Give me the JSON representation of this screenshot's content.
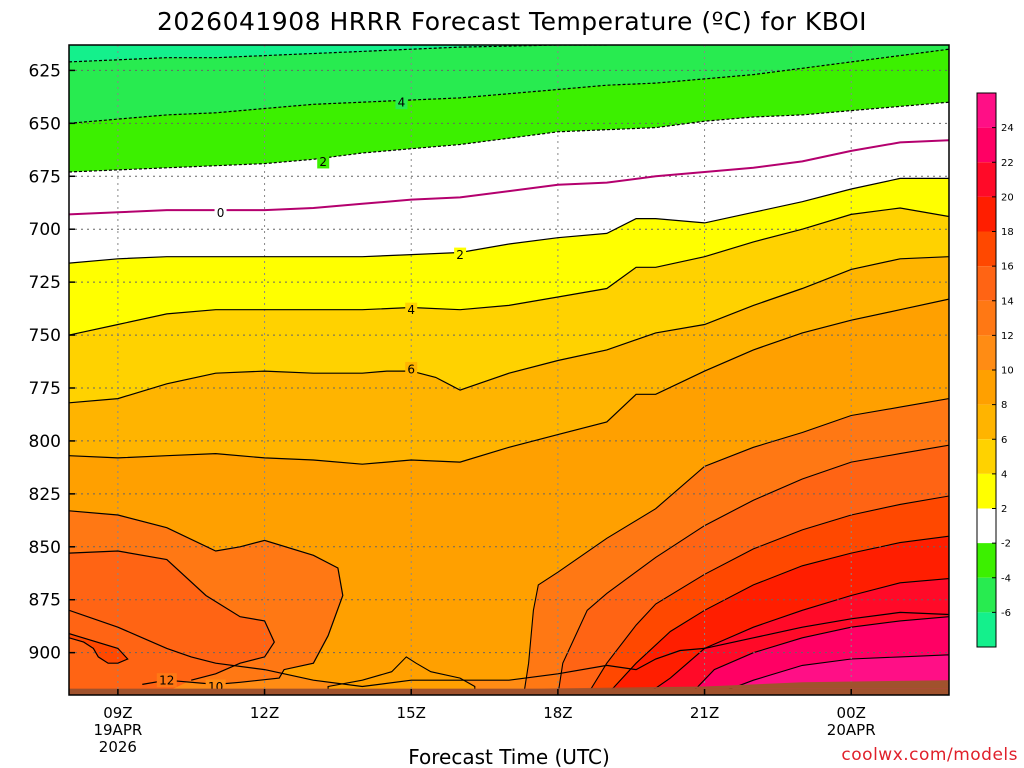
{
  "chart_data": {
    "type": "heatmap",
    "subtype": "filled contour (time-height cross section)",
    "title": "2026041908 HRRR Forecast Temperature (ºC) for KBOI",
    "xlabel": "Forecast Time (UTC)",
    "ylabel": "",
    "credit": "coolwx.com/models",
    "y_axis": {
      "unit_note": "pressure (mb), inverted (625 at top)",
      "ticks": [
        625,
        650,
        675,
        700,
        725,
        750,
        775,
        800,
        825,
        850,
        875,
        900
      ],
      "tick_labels": [
        "625",
        "650",
        "675",
        "700",
        "725",
        "750",
        "775",
        "800",
        "825",
        "850",
        "875",
        "900"
      ],
      "range": [
        613,
        920
      ]
    },
    "x_axis": {
      "unit_note": "forecast hour (0 = 08Z 19 Apr 2026)",
      "range": [
        0,
        18
      ],
      "ticks": [
        {
          "hour": 1,
          "label": "09Z",
          "sub1": "19APR",
          "sub2": "2026"
        },
        {
          "hour": 4,
          "label": "12Z",
          "sub1": "",
          "sub2": ""
        },
        {
          "hour": 7,
          "label": "15Z",
          "sub1": "",
          "sub2": ""
        },
        {
          "hour": 10,
          "label": "18Z",
          "sub1": "",
          "sub2": ""
        },
        {
          "hour": 13,
          "label": "21Z",
          "sub1": "",
          "sub2": ""
        },
        {
          "hour": 16,
          "label": "00Z",
          "sub1": "20APR",
          "sub2": ""
        }
      ]
    },
    "grid": true,
    "colorbar": {
      "position": "right",
      "tick_labels": [
        "24",
        "22",
        "20",
        "18",
        "16",
        "14",
        "12",
        "10",
        "8",
        "6",
        "4",
        "2",
        "-2",
        "-4",
        "-6"
      ],
      "bins": [
        {
          "min": 24,
          "max": 26,
          "color": "#ff0f86"
        },
        {
          "min": 22,
          "max": 24,
          "color": "#ff0064"
        },
        {
          "min": 20,
          "max": 22,
          "color": "#ff0a28"
        },
        {
          "min": 18,
          "max": 20,
          "color": "#ff1e00"
        },
        {
          "min": 16,
          "max": 18,
          "color": "#ff4800"
        },
        {
          "min": 14,
          "max": 16,
          "color": "#ff6414"
        },
        {
          "min": 12,
          "max": 14,
          "color": "#ff7814"
        },
        {
          "min": 10,
          "max": 12,
          "color": "#ff8c14"
        },
        {
          "min": 8,
          "max": 10,
          "color": "#ffa000"
        },
        {
          "min": 6,
          "max": 8,
          "color": "#ffb400"
        },
        {
          "min": 4,
          "max": 6,
          "color": "#ffd200"
        },
        {
          "min": 2,
          "max": 4,
          "color": "#ffff00"
        },
        {
          "min": -2,
          "max": 2,
          "color": "#ffffff"
        },
        {
          "min": -4,
          "max": -2,
          "color": "#3cf000"
        },
        {
          "min": -6,
          "max": -4,
          "color": "#28eb50"
        },
        {
          "min": -8,
          "max": -6,
          "color": "#14f08c"
        }
      ]
    },
    "ground_color": "#a0522d",
    "zero_isotherm_color": "#b4006e",
    "contours": [
      {
        "value": -6,
        "label_shown": false,
        "dashed": true,
        "points": [
          [
            0,
            621
          ],
          [
            1,
            620
          ],
          [
            2,
            619
          ],
          [
            3,
            619
          ],
          [
            4,
            618
          ],
          [
            5,
            617
          ],
          [
            6,
            616
          ],
          [
            7,
            615
          ],
          [
            8,
            614
          ],
          [
            9,
            613.5
          ],
          [
            10,
            613
          ],
          [
            11,
            613
          ]
        ]
      },
      {
        "value": -4,
        "label_shown": true,
        "label_at": [
          6.8,
          640
        ],
        "dashed": true,
        "points": [
          [
            0,
            650
          ],
          [
            1,
            648
          ],
          [
            2,
            646
          ],
          [
            3,
            645
          ],
          [
            4,
            643
          ],
          [
            5,
            641
          ],
          [
            6,
            640
          ],
          [
            7,
            639
          ],
          [
            8,
            638
          ],
          [
            9,
            636
          ],
          [
            10,
            634
          ],
          [
            11,
            632
          ],
          [
            12,
            631
          ],
          [
            13,
            629
          ],
          [
            14,
            627
          ],
          [
            15,
            624
          ],
          [
            16,
            621
          ],
          [
            17,
            618
          ],
          [
            18,
            615
          ]
        ]
      },
      {
        "value": -2,
        "label_shown": true,
        "label_at": [
          5.2,
          668
        ],
        "dashed": true,
        "points": [
          [
            0,
            673
          ],
          [
            1,
            672
          ],
          [
            2,
            671
          ],
          [
            3,
            670
          ],
          [
            4,
            669
          ],
          [
            5,
            667
          ],
          [
            6,
            664
          ],
          [
            7,
            662
          ],
          [
            8,
            660
          ],
          [
            9,
            657
          ],
          [
            10,
            654
          ],
          [
            11,
            653
          ],
          [
            12,
            652
          ],
          [
            13,
            649
          ],
          [
            14,
            647
          ],
          [
            15,
            646
          ],
          [
            16,
            644
          ],
          [
            17,
            642
          ],
          [
            18,
            640
          ]
        ]
      },
      {
        "value": 0,
        "label_shown": true,
        "label_at": [
          3.1,
          692
        ],
        "dashed": false,
        "points": [
          [
            0,
            693
          ],
          [
            1,
            692
          ],
          [
            2,
            691
          ],
          [
            3,
            691
          ],
          [
            4,
            691
          ],
          [
            5,
            690
          ],
          [
            6,
            688
          ],
          [
            7,
            686
          ],
          [
            8,
            685
          ],
          [
            9,
            682
          ],
          [
            10,
            679
          ],
          [
            11,
            678
          ],
          [
            12,
            675
          ],
          [
            13,
            673
          ],
          [
            14,
            671
          ],
          [
            15,
            668
          ],
          [
            16,
            663
          ],
          [
            17,
            659
          ],
          [
            18,
            658
          ]
        ]
      },
      {
        "value": 2,
        "label_shown": true,
        "label_at": [
          8,
          712
        ],
        "dashed": false,
        "points": [
          [
            0,
            716
          ],
          [
            1,
            714
          ],
          [
            2,
            713
          ],
          [
            3,
            713
          ],
          [
            4,
            713
          ],
          [
            5,
            713
          ],
          [
            6,
            713
          ],
          [
            7,
            712
          ],
          [
            8,
            711
          ],
          [
            9,
            707
          ],
          [
            10,
            704
          ],
          [
            11,
            702
          ],
          [
            11.6,
            695
          ],
          [
            12,
            695
          ],
          [
            13,
            697
          ],
          [
            14,
            692
          ],
          [
            15,
            687
          ],
          [
            16,
            681
          ],
          [
            17,
            676
          ],
          [
            18,
            676
          ]
        ]
      },
      {
        "value": 4,
        "label_shown": true,
        "label_at": [
          7,
          738
        ],
        "dashed": false,
        "points": [
          [
            0,
            750
          ],
          [
            1,
            745
          ],
          [
            2,
            740
          ],
          [
            3,
            738
          ],
          [
            4,
            738
          ],
          [
            5,
            738
          ],
          [
            6,
            738
          ],
          [
            7,
            737
          ],
          [
            8,
            738
          ],
          [
            9,
            736
          ],
          [
            10,
            732
          ],
          [
            11,
            728
          ],
          [
            11.6,
            718
          ],
          [
            12,
            718
          ],
          [
            13,
            713
          ],
          [
            14,
            706
          ],
          [
            15,
            700
          ],
          [
            16,
            693
          ],
          [
            17,
            690
          ],
          [
            18,
            694
          ]
        ]
      },
      {
        "value": 6,
        "label_shown": true,
        "label_at": [
          7,
          766
        ],
        "dashed": false,
        "points": [
          [
            0,
            782
          ],
          [
            1,
            780
          ],
          [
            2,
            773
          ],
          [
            3,
            768
          ],
          [
            4,
            767
          ],
          [
            5,
            768
          ],
          [
            6,
            768
          ],
          [
            6.5,
            767
          ],
          [
            7,
            767
          ],
          [
            7.5,
            770
          ],
          [
            8,
            776
          ],
          [
            9,
            768
          ],
          [
            10,
            762
          ],
          [
            11,
            757
          ],
          [
            12,
            749
          ],
          [
            13,
            745
          ],
          [
            14,
            736
          ],
          [
            15,
            728
          ],
          [
            16,
            719
          ],
          [
            17,
            714
          ],
          [
            18,
            713
          ]
        ]
      },
      {
        "value": 8,
        "label_shown": false,
        "dashed": false,
        "points": [
          [
            0,
            807
          ],
          [
            1,
            808
          ],
          [
            2,
            807
          ],
          [
            3,
            806
          ],
          [
            4,
            808
          ],
          [
            5,
            809
          ],
          [
            6,
            811
          ],
          [
            7,
            809
          ],
          [
            8,
            810
          ],
          [
            9,
            803
          ],
          [
            10,
            797
          ],
          [
            11,
            791
          ],
          [
            11.6,
            778
          ],
          [
            12,
            778
          ],
          [
            13,
            767
          ],
          [
            14,
            757
          ],
          [
            15,
            749
          ],
          [
            16,
            743
          ],
          [
            17,
            738
          ],
          [
            18,
            733
          ]
        ]
      },
      {
        "value": 10,
        "label_shown": true,
        "label_at": [
          3,
          916
        ],
        "dashed": false,
        "points": [
          [
            0,
            880
          ],
          [
            1,
            888
          ],
          [
            2,
            898
          ],
          [
            2.5,
            902
          ],
          [
            3,
            905
          ],
          [
            4,
            908
          ],
          [
            5,
            913
          ],
          [
            6,
            916
          ],
          [
            7,
            913
          ],
          [
            8,
            913
          ],
          [
            9,
            913
          ],
          [
            10,
            910
          ],
          [
            11,
            906
          ],
          [
            11.6,
            908
          ],
          [
            12,
            903
          ],
          [
            12.5,
            899
          ],
          [
            13,
            898
          ],
          [
            14,
            893
          ],
          [
            15,
            888
          ],
          [
            16,
            884
          ],
          [
            17,
            881
          ],
          [
            18,
            882
          ]
        ]
      },
      {
        "value": 12,
        "label_shown": true,
        "label_at": [
          2,
          913
        ],
        "dashed": false,
        "points": [
          [
            0,
            833
          ],
          [
            1,
            835
          ],
          [
            2,
            841
          ],
          [
            3,
            852
          ],
          [
            3.5,
            850
          ],
          [
            4,
            847
          ],
          [
            5,
            854
          ],
          [
            5.5,
            860
          ],
          [
            5.6,
            873
          ],
          [
            5.3,
            892
          ],
          [
            5,
            905
          ],
          [
            4.4,
            908
          ],
          [
            4.3,
            912
          ],
          [
            3.5,
            914
          ],
          [
            3,
            915
          ],
          [
            2,
            913
          ],
          [
            1.5,
            915
          ]
        ]
      },
      {
        "value": 14,
        "label_shown": false,
        "dashed": false,
        "points": [
          [
            0,
            853
          ],
          [
            1,
            852
          ],
          [
            2,
            856
          ],
          [
            2.8,
            873
          ],
          [
            3.5,
            883
          ],
          [
            4,
            885
          ],
          [
            4.2,
            895
          ],
          [
            4,
            902
          ],
          [
            3.5,
            905
          ],
          [
            3,
            910
          ],
          [
            2.5,
            913
          ]
        ]
      },
      {
        "value": 16,
        "label_shown": false,
        "dashed": false,
        "points": [
          [
            0,
            891
          ],
          [
            1,
            898
          ],
          [
            1.2,
            903
          ],
          [
            1,
            905
          ],
          [
            0.8,
            905
          ],
          [
            0.6,
            902
          ],
          [
            0.5,
            898
          ],
          [
            0.3,
            895
          ],
          [
            0,
            893
          ]
        ]
      }
    ]
  }
}
